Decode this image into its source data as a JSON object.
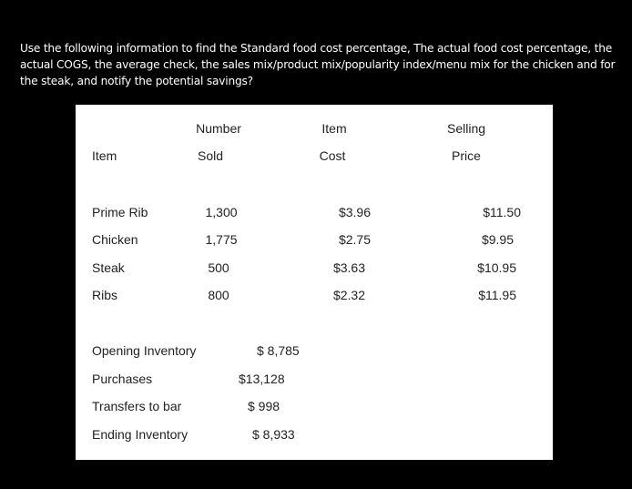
{
  "question": "Use the following information to find the Standard food cost percentage, The actual food cost percentage, the actual COGS, the average check, the sales mix/product mix/popularity index/menu mix for the chicken and for the steak, and notify the potential savings?",
  "table": {
    "headers": {
      "item": "Item",
      "number_sold": [
        "Number",
        "Sold"
      ],
      "item_cost": [
        "Item",
        "Cost"
      ],
      "selling_price": [
        "Selling",
        "Price"
      ]
    },
    "rows": [
      {
        "item": "Prime Rib",
        "sold": "1,300",
        "cost": "$3.96",
        "price": "$11.50"
      },
      {
        "item": "Chicken",
        "sold": "1,775",
        "cost": "$2.75",
        "price": "$9.95"
      },
      {
        "item": "Steak",
        "sold": "500",
        "cost": "$3.63",
        "price": "$10.95"
      },
      {
        "item": "Ribs",
        "sold": "800",
        "cost": "$2.32",
        "price": "$11.95"
      }
    ]
  },
  "inventory": [
    {
      "label": "Opening Inventory",
      "value": "$ 8,785"
    },
    {
      "label": "Purchases",
      "value": "$13,128"
    },
    {
      "label": "Transfers to bar",
      "value": "$ 998"
    },
    {
      "label": "Ending Inventory",
      "value": "$ 8,933"
    }
  ]
}
